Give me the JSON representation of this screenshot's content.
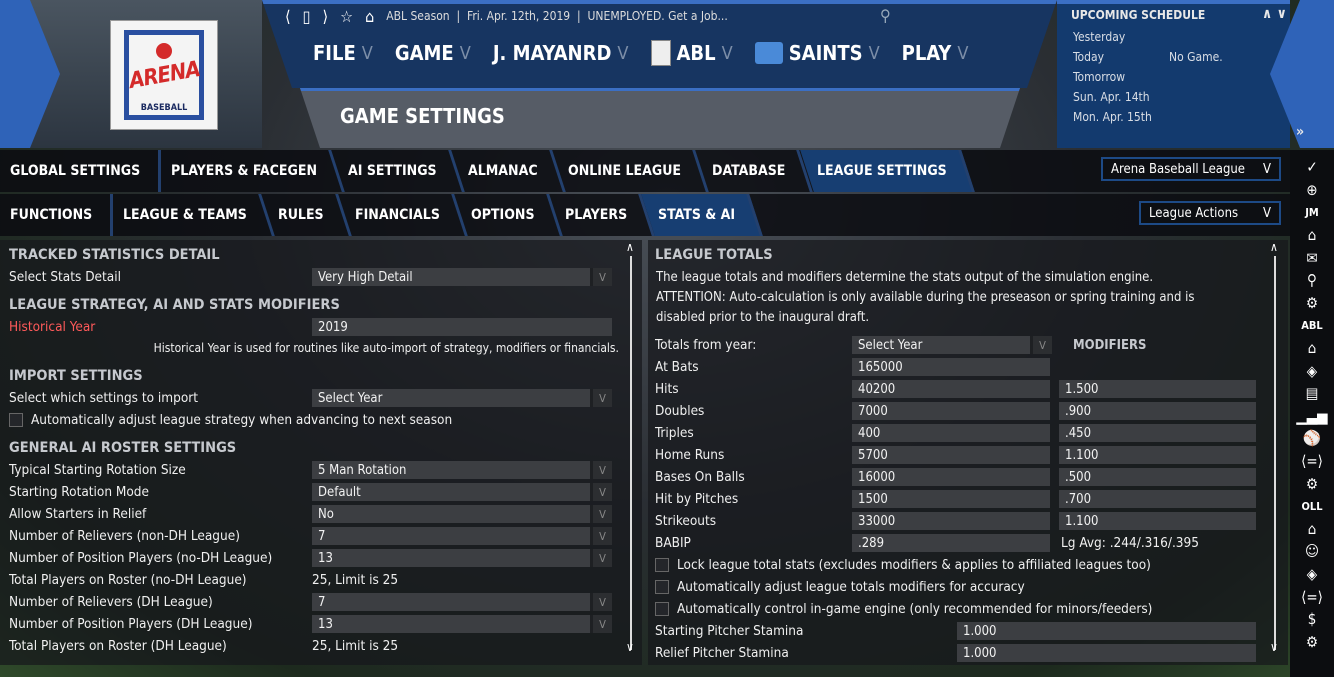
{
  "logo": {
    "text": "ARENA",
    "subtext": "BASEBALL"
  },
  "nav": {
    "breadcrumb": "ABL Season  |  Fri. Apr. 12th, 2019  |  UNEMPLOYED. Get a Job...",
    "icons": [
      "chevron-left-icon",
      "bookmark-icon",
      "chevron-right-icon",
      "star-icon",
      "home-icon"
    ],
    "menu": [
      {
        "label": "FILE"
      },
      {
        "label": "GAME"
      },
      {
        "label": "J. MAYANRD"
      },
      {
        "label": "ABL",
        "logo": "abl-logo"
      },
      {
        "label": "SAINTS",
        "logo": "saints-logo"
      },
      {
        "label": "PLAY"
      }
    ],
    "chevron": "V",
    "page_title": "GAME SETTINGS"
  },
  "schedule": {
    "title": "UPCOMING SCHEDULE",
    "arrows": "∧ ∨",
    "rows": [
      {
        "day": "Yesterday",
        "game": ""
      },
      {
        "day": "Today",
        "game": "No Game."
      },
      {
        "day": "Tomorrow",
        "game": ""
      },
      {
        "day": "Sun. Apr. 14th",
        "game": ""
      },
      {
        "day": "Mon. Apr. 15th",
        "game": ""
      }
    ],
    "more": "»"
  },
  "tabs1": [
    {
      "label": "GLOBAL SETTINGS"
    },
    {
      "label": "PLAYERS & FACEGEN"
    },
    {
      "label": "AI SETTINGS"
    },
    {
      "label": "ALMANAC"
    },
    {
      "label": "ONLINE LEAGUE"
    },
    {
      "label": "DATABASE"
    },
    {
      "label": "LEAGUE SETTINGS",
      "active": true
    }
  ],
  "tabs2": [
    {
      "label": "FUNCTIONS"
    },
    {
      "label": "LEAGUE & TEAMS"
    },
    {
      "label": "RULES"
    },
    {
      "label": "FINANCIALS"
    },
    {
      "label": "OPTIONS"
    },
    {
      "label": "PLAYERS"
    },
    {
      "label": "STATS & AI",
      "active": true
    }
  ],
  "league_select": "Arena Baseball League",
  "league_actions": "League Actions",
  "dropdown_chevron": "V",
  "sidebar": [
    {
      "icon": "check-icon",
      "g": "✓"
    },
    {
      "icon": "globe-icon",
      "g": "⊕"
    },
    {
      "text": "JM"
    },
    {
      "icon": "home-icon",
      "g": "⌂"
    },
    {
      "icon": "mail-icon",
      "g": "✉"
    },
    {
      "icon": "search-icon",
      "g": "⚲"
    },
    {
      "icon": "gear-icon",
      "g": "⚙"
    },
    {
      "text": "ABL"
    },
    {
      "icon": "home-icon",
      "g": "⌂"
    },
    {
      "icon": "diamond-icon",
      "g": "◈"
    },
    {
      "icon": "card-icon",
      "g": "▤"
    },
    {
      "icon": "bar-chart-icon",
      "g": "▁▃▅"
    },
    {
      "icon": "baseball-icon",
      "g": "⚾"
    },
    {
      "icon": "trade-icon",
      "g": "⟨=⟩"
    },
    {
      "icon": "gear-icon",
      "g": "⚙"
    },
    {
      "text": "OLL"
    },
    {
      "icon": "home-icon",
      "g": "⌂"
    },
    {
      "icon": "player-icon",
      "g": "☺"
    },
    {
      "icon": "diamond-icon",
      "g": "◈"
    },
    {
      "icon": "trade-icon",
      "g": "⟨=⟩"
    },
    {
      "icon": "dollar-icon",
      "g": "$"
    },
    {
      "icon": "gear-icon",
      "g": "⚙"
    }
  ],
  "left": {
    "sections": [
      {
        "type": "head",
        "label": "TRACKED STATISTICS DETAIL"
      },
      {
        "type": "select",
        "label": "Select Stats Detail",
        "value": "Very High Detail"
      },
      {
        "type": "head",
        "label": "LEAGUE STRATEGY, AI AND STATS MODIFIERS"
      },
      {
        "type": "input",
        "label": "Historical Year",
        "value": "2019",
        "color": "#ff5a5a"
      },
      {
        "type": "note",
        "label": "Historical Year is used for routines like auto-import of strategy, modifiers or financials."
      },
      {
        "type": "head",
        "label": "IMPORT SETTINGS"
      },
      {
        "type": "select",
        "label": "Select which settings to import",
        "value": "Select Year"
      },
      {
        "type": "check",
        "label": "Automatically adjust league strategy when advancing to next season",
        "checked": false
      },
      {
        "type": "head",
        "label": "GENERAL AI ROSTER SETTINGS"
      },
      {
        "type": "select",
        "label": "Typical Starting Rotation Size",
        "value": "5 Man Rotation"
      },
      {
        "type": "select",
        "label": "Starting Rotation Mode",
        "value": "Default"
      },
      {
        "type": "select",
        "label": "Allow Starters in Relief",
        "value": "No"
      },
      {
        "type": "select",
        "label": "Number of Relievers (non-DH League)",
        "value": "7"
      },
      {
        "type": "select",
        "label": "Number of Position Players (no-DH League)",
        "value": "13"
      },
      {
        "type": "text",
        "label": "Total Players on Roster (no-DH League)",
        "value": "25, Limit is 25"
      },
      {
        "type": "select",
        "label": "Number of Relievers (DH League)",
        "value": "7"
      },
      {
        "type": "select",
        "label": "Number of Position Players (DH League)",
        "value": "13"
      },
      {
        "type": "text",
        "label": "Total Players on Roster (DH League)",
        "value": "25, Limit is 25"
      }
    ]
  },
  "right": {
    "title": "LEAGUE TOTALS",
    "desc": [
      "The league totals and modifiers determine the stats output of the simulation engine.",
      "ATTENTION: Auto-calculation is only available during the preseason or spring training and is",
      "disabled prior to the inaugural draft."
    ],
    "totals_label": "Totals from year:",
    "totals_value": "Select Year",
    "modifiers_header": "MODIFIERS",
    "stats": [
      {
        "label": "At Bats",
        "total": "165000",
        "modifier": null
      },
      {
        "label": "Hits",
        "total": "40200",
        "modifier": "1.500"
      },
      {
        "label": "Doubles",
        "total": "7000",
        "modifier": ".900"
      },
      {
        "label": "Triples",
        "total": "400",
        "modifier": ".450"
      },
      {
        "label": "Home Runs",
        "total": "5700",
        "modifier": "1.100"
      },
      {
        "label": "Bases On Balls",
        "total": "16000",
        "modifier": ".500"
      },
      {
        "label": "Hit by Pitches",
        "total": "1500",
        "modifier": ".700"
      },
      {
        "label": "Strikeouts",
        "total": "33000",
        "modifier": "1.100"
      },
      {
        "label": "BABIP",
        "total": ".289",
        "modifier": null,
        "note": "Lg Avg: .244/.316/.395"
      }
    ],
    "checks": [
      {
        "label": "Lock league total stats (excludes modifiers & applies to affiliated leagues too)",
        "checked": false
      },
      {
        "label": "Automatically adjust league totals modifiers for accuracy",
        "checked": false
      },
      {
        "label": "Automatically control in-game engine (only recommended for minors/feeders)",
        "checked": false
      }
    ],
    "stamina": [
      {
        "label": "Starting Pitcher Stamina",
        "value": "1.000"
      },
      {
        "label": "Relief Pitcher Stamina",
        "value": "1.000"
      }
    ]
  },
  "scroll": {
    "up": "∧",
    "down": "∨"
  }
}
